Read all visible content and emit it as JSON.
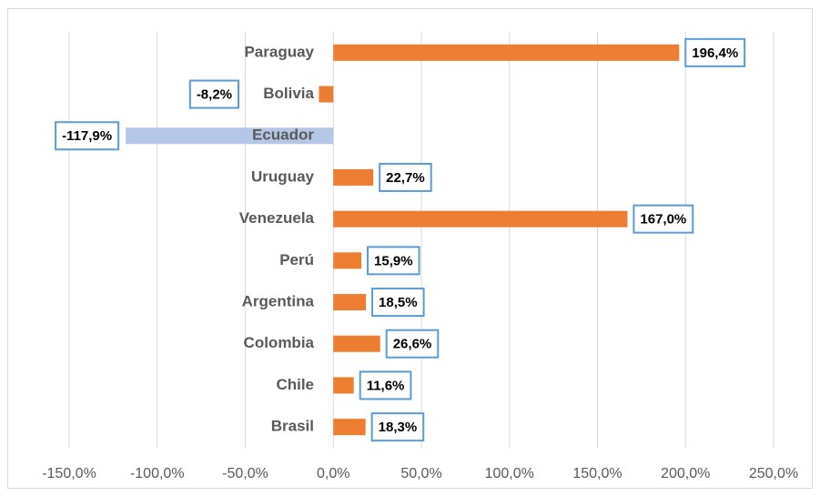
{
  "chart_data": {
    "type": "bar",
    "orientation": "horizontal",
    "categories": [
      "Paraguay",
      "Bolivia",
      "Ecuador",
      "Uruguay",
      "Venezuela",
      "Perú",
      "Argentina",
      "Colombia",
      "Chile",
      "Brasil"
    ],
    "values": [
      196.4,
      -8.2,
      -117.9,
      22.7,
      167.0,
      15.9,
      18.5,
      26.6,
      11.6,
      18.3
    ],
    "value_labels": [
      "196,4%",
      "-8,2%",
      "-117,9%",
      "22,7%",
      "167,0%",
      "15,9%",
      "18,5%",
      "26,6%",
      "11,6%",
      "18,3%"
    ],
    "colors": [
      "#ed7d31",
      "#ed7d31",
      "#b4c7e7",
      "#ed7d31",
      "#ed7d31",
      "#ed7d31",
      "#ed7d31",
      "#ed7d31",
      "#ed7d31",
      "#ed7d31"
    ],
    "xlim": [
      -150,
      250
    ],
    "xticks": [
      {
        "value": -150,
        "label": "-150,0%"
      },
      {
        "value": -100,
        "label": "-100,0%"
      },
      {
        "value": -50,
        "label": "-50,0%"
      },
      {
        "value": 0,
        "label": "0,0%"
      },
      {
        "value": 50,
        "label": "50,0%"
      },
      {
        "value": 100,
        "label": "100,0%"
      },
      {
        "value": 150,
        "label": "150,0%"
      },
      {
        "value": 200,
        "label": "200,0%"
      },
      {
        "value": 250,
        "label": "250,0%"
      }
    ],
    "grid": true
  }
}
